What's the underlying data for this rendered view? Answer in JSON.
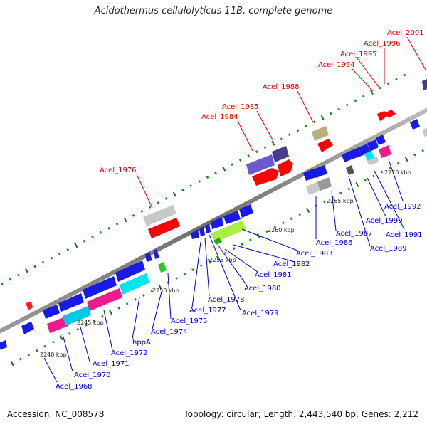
{
  "title": "Acidothermus cellulolyticus 11B, complete genome",
  "footer": {
    "accession": "Accession: NC_008578",
    "topology": "Topology: circular; Length: 2,443,540 bp; Genes: 2,212"
  },
  "colors": {
    "backbone": "#7a7a7a",
    "label_red": "#d40000",
    "label_blue": "#0000cc",
    "grid_dot": "#1a8a1a",
    "gene_blue": "#1a1ae6",
    "gene_red": "#ff0000",
    "gene_cyan": "#00e5ee",
    "gene_magenta": "#ee1b8e",
    "gene_gray": "#c8c8c8",
    "gene_purple": "#6a5acd",
    "gene_olive": "#b8b07a",
    "gene_lime": "#a8f040"
  },
  "scale_labels": [
    "2240 kbp",
    "2245 kbp",
    "2250 kbp",
    "2255 kbp",
    "2260 kbp",
    "2265 kbp",
    "2270 kbp"
  ],
  "labels_top": [
    "Acel_1976",
    "Acel_1984",
    "Acel_1985",
    "Acel_1988",
    "Acel_1994",
    "Acel_1995",
    "Acel_1996",
    "Acel_2001"
  ],
  "labels_bottom": [
    "Acel_1968",
    "Acel_1970",
    "Acel_1971",
    "Acel_1972",
    "hppA",
    "Acel_1974",
    "Acel_1975",
    "Acel_1977",
    "Acel_1978",
    "Acel_1979",
    "Acel_1980",
    "Acel_1981",
    "Acel_1982",
    "Acel_1983",
    "Acel_1986",
    "Acel_1987",
    "Acel_1989",
    "Acel_1990",
    "Acel_1991",
    "Acel_1992"
  ]
}
